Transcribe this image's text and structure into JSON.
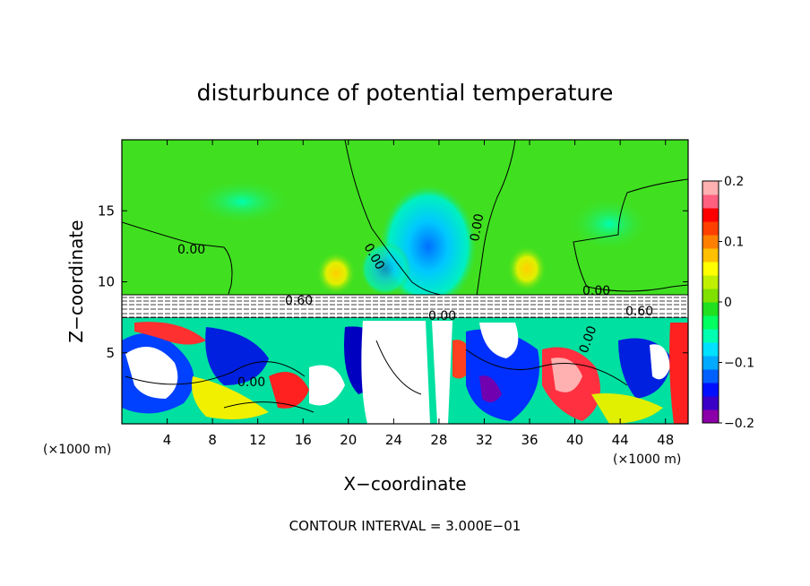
{
  "chart_data": {
    "type": "heatmap",
    "title": "disturbunce of potential temperature",
    "xlabel": "X−coordinate",
    "ylabel": "Z−coordinate",
    "x_unit_left": "(×1000 m)",
    "x_unit_right": "(×1000 m)",
    "footer": "CONTOUR INTERVAL = 3.000E−01",
    "xlim": [
      0,
      50
    ],
    "ylim": [
      0,
      20
    ],
    "x_ticks": [
      4,
      8,
      12,
      16,
      20,
      24,
      28,
      32,
      36,
      40,
      44,
      48
    ],
    "y_ticks": [
      5,
      10,
      15
    ],
    "colorbar": {
      "range": [
        -0.2,
        0.2
      ],
      "tick_values": [
        0.2,
        0.1,
        0,
        -0.1,
        -0.2
      ],
      "tick_labels": [
        "0.2",
        "0.1",
        "0",
        "−0.1",
        "−0.2"
      ],
      "colors": [
        "#8b00a8",
        "#3a00c8",
        "#0010ff",
        "#0060ff",
        "#00aaff",
        "#00e0ff",
        "#00ffb0",
        "#00ff60",
        "#20e020",
        "#80e000",
        "#c0f000",
        "#ffff00",
        "#ffc000",
        "#ff8000",
        "#ff4000",
        "#ff0000",
        "#ff6080",
        "#ffb0b0"
      ]
    },
    "contour_labels": [
      "0.00",
      "0.00",
      "0.00",
      "0.00",
      "0.00",
      "0.60",
      "0.60",
      "0.00",
      "0.00"
    ]
  },
  "colors": {
    "field_background": "#40e020",
    "frame": "#000000"
  }
}
